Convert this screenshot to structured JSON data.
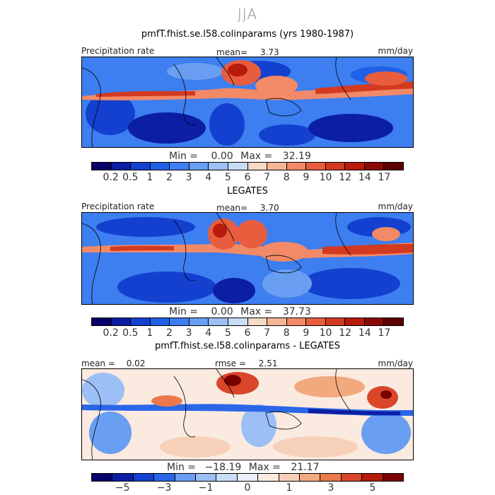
{
  "figure": {
    "season": "JJA"
  },
  "colors": {
    "precip": [
      "#08006b",
      "#0c1ea3",
      "#1440d0",
      "#2060e8",
      "#3d7ef0",
      "#6a9ef2",
      "#9cbff5",
      "#c9dcf7",
      "#f6d9c6",
      "#f7b596",
      "#f28a67",
      "#e85d3e",
      "#d33a20",
      "#b81a0c",
      "#8c0a04",
      "#5c0000"
    ],
    "diff": [
      "#08006b",
      "#0c1ea3",
      "#1440d0",
      "#2a66e8",
      "#6a9ef2",
      "#9cbff5",
      "#c9dcf7",
      "#e8eefa",
      "#faeadf",
      "#f6d0b8",
      "#f2a97e",
      "#ea7a4e",
      "#d9462a",
      "#b41a0c",
      "#7a0000"
    ]
  },
  "chart_data": [
    {
      "type": "heatmap",
      "title": "pmfT.fhist.se.l58.colinparams (yrs 1980-1987)",
      "left_label": "Precipitation rate",
      "mean_label": "mean=",
      "mean_value": "3.73",
      "units": "mm/day",
      "min_label": "Min =",
      "min_value": "0.00",
      "max_label": "Max =",
      "max_value": "32.19",
      "levels": [
        0.2,
        0.5,
        1,
        2,
        3,
        4,
        5,
        6,
        7,
        8,
        9,
        10,
        12,
        14,
        17
      ],
      "tick_labels": [
        "0.2",
        "0.5",
        "1",
        "2",
        "3",
        "4",
        "5",
        "6",
        "7",
        "8",
        "9",
        "10",
        "12",
        "14",
        "17"
      ]
    },
    {
      "type": "heatmap",
      "title": "LEGATES",
      "left_label": "Precipitation rate",
      "mean_label": "mean=",
      "mean_value": "3.70",
      "units": "mm/day",
      "min_label": "Min =",
      "min_value": "0.00",
      "max_label": "Max =",
      "max_value": "37.73",
      "levels": [
        0.2,
        0.5,
        1,
        2,
        3,
        4,
        5,
        6,
        7,
        8,
        9,
        10,
        12,
        14,
        17
      ],
      "tick_labels": [
        "0.2",
        "0.5",
        "1",
        "2",
        "3",
        "4",
        "5",
        "6",
        "7",
        "8",
        "9",
        "10",
        "12",
        "14",
        "17"
      ]
    },
    {
      "type": "heatmap",
      "title": "pmfT.fhist.se.l58.colinparams - LEGATES",
      "mean_label": "mean =",
      "mean_value": "0.02",
      "rmse_label": "rmse =",
      "rmse_value": "2.51",
      "units": "mm/day",
      "min_label": "Min =",
      "min_value": "−18.19",
      "max_label": "Max =",
      "max_value": "21.17",
      "levels": [
        -5,
        -4,
        -3,
        -2,
        -1,
        -0.5,
        0,
        0.5,
        1,
        2,
        3,
        4,
        5
      ],
      "tick_labels": [
        "−5",
        "−3",
        "−1",
        "0",
        "1",
        "3",
        "5"
      ]
    }
  ]
}
